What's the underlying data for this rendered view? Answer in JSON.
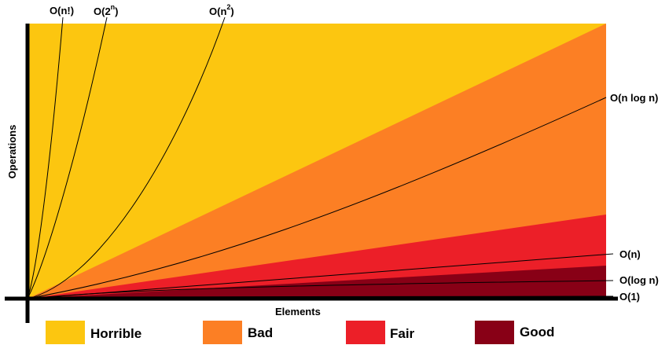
{
  "chart_data": {
    "type": "area",
    "xlabel": "Elements",
    "ylabel": "Operations",
    "regions": [
      {
        "name": "Horrible",
        "color": "#fcc610"
      },
      {
        "name": "Bad",
        "color": "#fc7f24"
      },
      {
        "name": "Fair",
        "color": "#ec1f28"
      },
      {
        "name": "Good",
        "color": "#880016"
      }
    ],
    "curves": [
      {
        "name": "O(n!)",
        "label_base": "O(n!)",
        "label_sup": ""
      },
      {
        "name": "O(2^n)",
        "label_base": "O(2",
        "label_sup": "n",
        "label_close": ")"
      },
      {
        "name": "O(n^2)",
        "label_base": "O(n",
        "label_sup": "2",
        "label_close": ")"
      },
      {
        "name": "O(n log n)",
        "label_base": "O(n log n)",
        "label_sup": ""
      },
      {
        "name": "O(n)",
        "label_base": "O(n)",
        "label_sup": ""
      },
      {
        "name": "O(log n)",
        "label_base": "O(log n)",
        "label_sup": ""
      },
      {
        "name": "O(1)",
        "label_base": "O(1)",
        "label_sup": ""
      }
    ],
    "legend": [
      {
        "label": "Horrible",
        "color": "#fcc610"
      },
      {
        "label": "Bad",
        "color": "#fc7f24"
      },
      {
        "label": "Fair",
        "color": "#ec1f28"
      },
      {
        "label": "Good",
        "color": "#880016"
      }
    ],
    "grid": false,
    "legend_position": "bottom"
  }
}
